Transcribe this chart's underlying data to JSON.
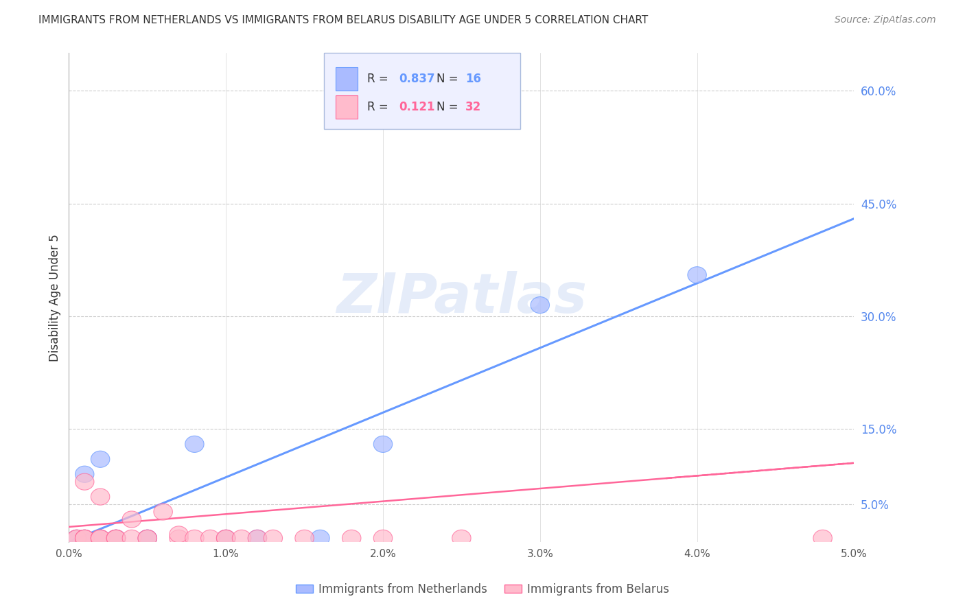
{
  "title": "IMMIGRANTS FROM NETHERLANDS VS IMMIGRANTS FROM BELARUS DISABILITY AGE UNDER 5 CORRELATION CHART",
  "source": "Source: ZipAtlas.com",
  "ylabel": "Disability Age Under 5",
  "watermark": "ZIPatlas",
  "xlim": [
    0.0,
    0.05
  ],
  "ylim": [
    0.0,
    0.65
  ],
  "ytick_right_labels": [
    "60.0%",
    "45.0%",
    "30.0%",
    "15.0%",
    "5.0%"
  ],
  "ytick_right_values": [
    0.6,
    0.45,
    0.3,
    0.15,
    0.05
  ],
  "xtick_labels": [
    "0.0%",
    "1.0%",
    "2.0%",
    "3.0%",
    "4.0%",
    "5.0%"
  ],
  "xtick_values": [
    0.0,
    0.01,
    0.02,
    0.03,
    0.04,
    0.05
  ],
  "netherlands_x": [
    0.0005,
    0.001,
    0.001,
    0.002,
    0.002,
    0.003,
    0.003,
    0.005,
    0.005,
    0.008,
    0.01,
    0.012,
    0.016,
    0.02,
    0.03,
    0.04
  ],
  "netherlands_y": [
    0.005,
    0.005,
    0.09,
    0.005,
    0.11,
    0.005,
    0.005,
    0.005,
    0.005,
    0.13,
    0.005,
    0.005,
    0.005,
    0.13,
    0.315,
    0.355
  ],
  "belarus_x": [
    0.0005,
    0.0005,
    0.001,
    0.001,
    0.001,
    0.001,
    0.002,
    0.002,
    0.002,
    0.002,
    0.003,
    0.003,
    0.003,
    0.004,
    0.004,
    0.005,
    0.005,
    0.006,
    0.007,
    0.007,
    0.008,
    0.009,
    0.01,
    0.01,
    0.011,
    0.012,
    0.013,
    0.015,
    0.018,
    0.02,
    0.025,
    0.048
  ],
  "belarus_y": [
    0.005,
    0.005,
    0.005,
    0.005,
    0.005,
    0.08,
    0.005,
    0.005,
    0.005,
    0.06,
    0.005,
    0.005,
    0.005,
    0.005,
    0.03,
    0.005,
    0.005,
    0.04,
    0.005,
    0.01,
    0.005,
    0.005,
    0.005,
    0.005,
    0.005,
    0.005,
    0.005,
    0.005,
    0.005,
    0.005,
    0.005,
    0.005
  ],
  "netherlands_R": 0.837,
  "netherlands_N": 16,
  "belarus_R": 0.121,
  "belarus_N": 32,
  "nl_line_x0": 0.0,
  "nl_line_y0": 0.0,
  "nl_line_x1": 0.05,
  "nl_line_y1": 0.43,
  "by_line_x0": 0.0,
  "by_line_y0": 0.02,
  "by_line_x1": 0.05,
  "by_line_y1": 0.105,
  "blue_color": "#6699ff",
  "pink_color": "#ff6699",
  "blue_fill": "#aabbff",
  "pink_fill": "#ffbbcc",
  "legend_bg": "#eef0ff",
  "grid_color": "#cccccc",
  "title_color": "#333333",
  "right_axis_color": "#5588ee",
  "bottom_legend_items": [
    "Immigrants from Netherlands",
    "Immigrants from Belarus"
  ]
}
